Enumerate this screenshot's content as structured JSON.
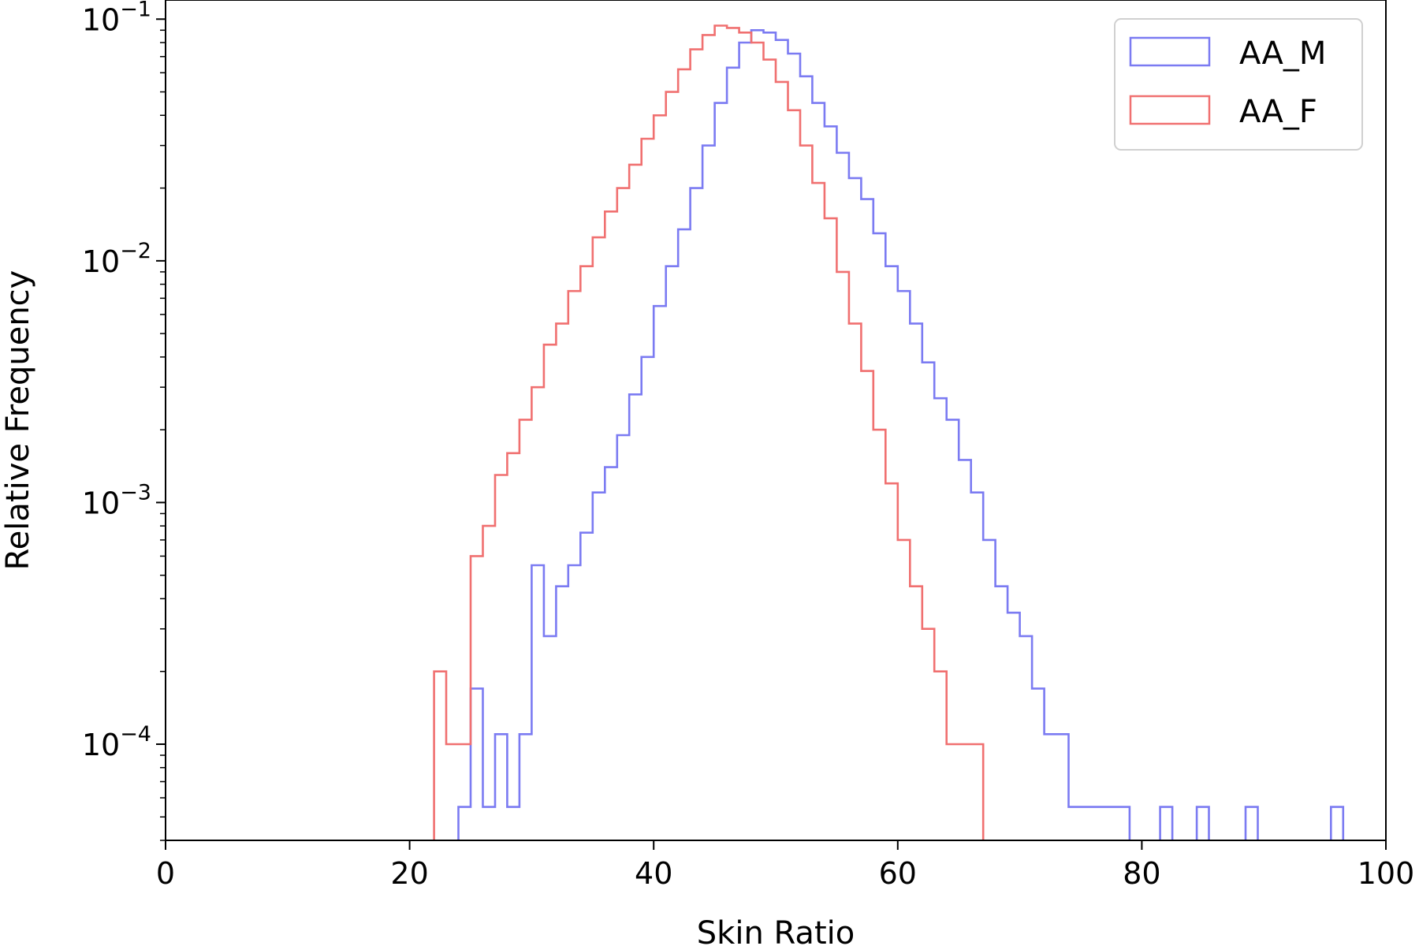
{
  "chart_data": {
    "type": "histogram",
    "title": "",
    "xlabel": "Skin Ratio",
    "ylabel": "Relative Frequency",
    "xlim": [
      0,
      100
    ],
    "ylim": [
      4e-05,
      0.12
    ],
    "yscale": "log",
    "grid": false,
    "legend_position": "top-right",
    "xticks": [
      {
        "value": 0,
        "label": "0"
      },
      {
        "value": 20,
        "label": "20"
      },
      {
        "value": 40,
        "label": "40"
      },
      {
        "value": 60,
        "label": "60"
      },
      {
        "value": 80,
        "label": "80"
      },
      {
        "value": 100,
        "label": "100"
      }
    ],
    "yticks": [
      {
        "value": 0.0001,
        "base": "10",
        "exp": "−4"
      },
      {
        "value": 0.001,
        "base": "10",
        "exp": "−3"
      },
      {
        "value": 0.01,
        "base": "10",
        "exp": "−2"
      },
      {
        "value": 0.1,
        "base": "10",
        "exp": "−1"
      }
    ],
    "series": [
      {
        "name": "AA_M",
        "color": "#7b7bf2",
        "points": [
          [
            24.5,
            5.5e-05
          ],
          [
            25.5,
            0.00017
          ],
          [
            26.5,
            5.5e-05
          ],
          [
            27.5,
            0.00011
          ],
          [
            28.5,
            5.5e-05
          ],
          [
            29.5,
            0.00011
          ],
          [
            30.5,
            0.00055
          ],
          [
            31.5,
            0.00028
          ],
          [
            32.5,
            0.00045
          ],
          [
            33.5,
            0.00055
          ],
          [
            34.5,
            0.00075
          ],
          [
            35.5,
            0.0011
          ],
          [
            36.5,
            0.0014
          ],
          [
            37.5,
            0.0019
          ],
          [
            38.5,
            0.0028
          ],
          [
            39.5,
            0.004
          ],
          [
            40.5,
            0.0065
          ],
          [
            41.5,
            0.0095
          ],
          [
            42.5,
            0.0135
          ],
          [
            43.5,
            0.02
          ],
          [
            44.5,
            0.03
          ],
          [
            45.5,
            0.045
          ],
          [
            46.5,
            0.063
          ],
          [
            47.5,
            0.08
          ],
          [
            48.5,
            0.09
          ],
          [
            49.5,
            0.088
          ],
          [
            50.5,
            0.082
          ],
          [
            51.5,
            0.072
          ],
          [
            52.5,
            0.058
          ],
          [
            53.5,
            0.045
          ],
          [
            54.5,
            0.036
          ],
          [
            55.5,
            0.028
          ],
          [
            56.5,
            0.022
          ],
          [
            57.5,
            0.018
          ],
          [
            58.5,
            0.013
          ],
          [
            59.5,
            0.0095
          ],
          [
            60.5,
            0.0075
          ],
          [
            61.5,
            0.0055
          ],
          [
            62.5,
            0.0038
          ],
          [
            63.5,
            0.0027
          ],
          [
            64.5,
            0.0022
          ],
          [
            65.5,
            0.0015
          ],
          [
            66.5,
            0.0011
          ],
          [
            67.5,
            0.0007
          ],
          [
            68.5,
            0.00045
          ],
          [
            69.5,
            0.00035
          ],
          [
            70.5,
            0.00028
          ],
          [
            71.5,
            0.00017
          ],
          [
            72.5,
            0.00011
          ],
          [
            73.5,
            0.00011
          ],
          [
            74.5,
            5.5e-05
          ],
          [
            75.5,
            5.5e-05
          ],
          [
            76.5,
            5.5e-05
          ],
          [
            77.5,
            5.5e-05
          ],
          [
            78.5,
            5.5e-05
          ],
          [
            82.0,
            5.5e-05
          ],
          [
            85.0,
            5.5e-05
          ],
          [
            89.0,
            5.5e-05
          ],
          [
            96.0,
            5.5e-05
          ]
        ]
      },
      {
        "name": "AA_F",
        "color": "#f07070",
        "points": [
          [
            22.5,
            0.0002
          ],
          [
            23.5,
            0.0001
          ],
          [
            24.5,
            0.0001
          ],
          [
            25.5,
            0.0006
          ],
          [
            26.5,
            0.0008
          ],
          [
            27.5,
            0.0013
          ],
          [
            28.5,
            0.0016
          ],
          [
            29.5,
            0.0022
          ],
          [
            30.5,
            0.003
          ],
          [
            31.5,
            0.0045
          ],
          [
            32.5,
            0.0055
          ],
          [
            33.5,
            0.0075
          ],
          [
            34.5,
            0.0095
          ],
          [
            35.5,
            0.0125
          ],
          [
            36.5,
            0.016
          ],
          [
            37.5,
            0.02
          ],
          [
            38.5,
            0.025
          ],
          [
            39.5,
            0.032
          ],
          [
            40.5,
            0.04
          ],
          [
            41.5,
            0.05
          ],
          [
            42.5,
            0.062
          ],
          [
            43.5,
            0.075
          ],
          [
            44.5,
            0.086
          ],
          [
            45.5,
            0.094
          ],
          [
            46.5,
            0.092
          ],
          [
            47.5,
            0.088
          ],
          [
            48.5,
            0.08
          ],
          [
            49.5,
            0.068
          ],
          [
            50.5,
            0.055
          ],
          [
            51.5,
            0.042
          ],
          [
            52.5,
            0.03
          ],
          [
            53.5,
            0.021
          ],
          [
            54.5,
            0.015
          ],
          [
            55.5,
            0.009
          ],
          [
            56.5,
            0.0055
          ],
          [
            57.5,
            0.0035
          ],
          [
            58.5,
            0.002
          ],
          [
            59.5,
            0.0012
          ],
          [
            60.5,
            0.0007
          ],
          [
            61.5,
            0.00045
          ],
          [
            62.5,
            0.0003
          ],
          [
            63.5,
            0.0002
          ],
          [
            64.5,
            0.0001
          ],
          [
            65.5,
            0.0001
          ],
          [
            66.5,
            0.0001
          ]
        ]
      }
    ]
  }
}
